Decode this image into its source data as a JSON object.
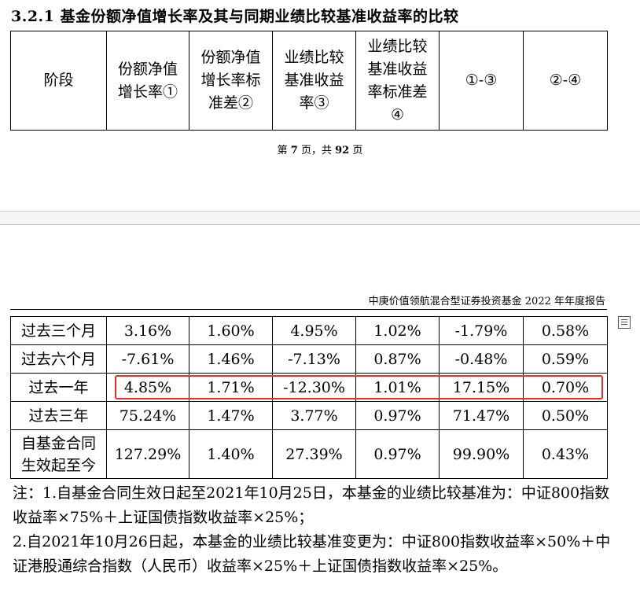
{
  "section_title": "3.2.1 基金份额净值增长率及其与同期业绩比较基准收益率的比较",
  "table_header": {
    "col_stage": "阶段",
    "col1": [
      "份额净值",
      "增长率①"
    ],
    "col2": [
      "份额净值",
      "增长率标",
      "准差②"
    ],
    "col3": [
      "业绩比较",
      "基准收益",
      "率③"
    ],
    "col4": [
      "业绩比较",
      "基准收益",
      "率标准差",
      "④"
    ],
    "col5": "①-③",
    "col6": "②-④"
  },
  "page_footer": {
    "prefix": "第 ",
    "page": "7",
    "middle": " 页，共 ",
    "total": "92",
    "suffix": " 页"
  },
  "report_header": "中庚价值领航混合型证券投资基金 2022 年年度报告",
  "rows": [
    {
      "label": [
        "过去三个月"
      ],
      "values": [
        "3.16%",
        "1.60%",
        "4.95%",
        "1.02%",
        "-1.79%",
        "0.58%"
      ]
    },
    {
      "label": [
        "过去六个月"
      ],
      "values": [
        "-7.61%",
        "1.46%",
        "-7.13%",
        "0.87%",
        "-0.48%",
        "0.59%"
      ]
    },
    {
      "label": [
        "过去一年"
      ],
      "values": [
        "4.85%",
        "1.71%",
        "-12.30%",
        "1.01%",
        "17.15%",
        "0.70%"
      ]
    },
    {
      "label": [
        "过去三年"
      ],
      "values": [
        "75.24%",
        "1.47%",
        "3.77%",
        "0.97%",
        "71.47%",
        "0.50%"
      ]
    },
    {
      "label": [
        "自基金合同",
        "生效起至今"
      ],
      "values": [
        "127.29%",
        "1.40%",
        "27.39%",
        "0.97%",
        "99.90%",
        "0.43%"
      ]
    }
  ],
  "highlight_color": "#e8302a",
  "side_icon": "outline-icon",
  "notes": [
    "注：1.自基金合同生效日起至2021年10月25日，本基金的业绩比较基准为：中证800指数",
    "收益率×75%＋上证国债指数收益率×25%；",
    "2.自2021年10月26日起，本基金的业绩比较基准变更为：中证800指数收益率×50%＋中",
    "证港股通综合指数（人民币）收益率×25%＋上证国债指数收益率×25%。"
  ]
}
